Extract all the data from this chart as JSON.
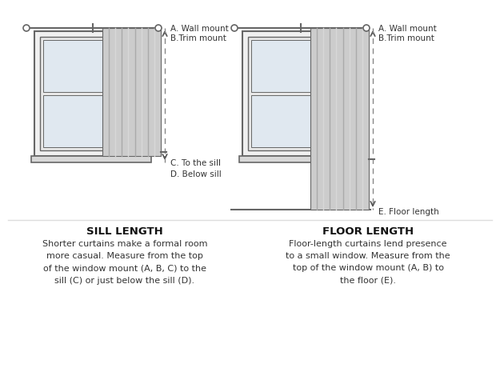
{
  "bg_color": "#ffffff",
  "line_color": "#666666",
  "curtain_fill": "#cccccc",
  "curtain_stripe": "#aaaaaa",
  "arrow_color": "#555555",
  "dashed_color": "#888888",
  "divider_color": "#dddddd",
  "left_title": "SILL LENGTH",
  "left_body": "Shorter curtains make a formal room\nmore casual. Measure from the top\nof the window mount (A, B, C) to the\nsill (C) or just below the sill (D).",
  "right_title": "FLOOR LENGTH",
  "right_body": "Floor-length curtains lend presence\nto a small window. Measure from the\ntop of the window mount (A, B) to\nthe floor (E).",
  "label_AB_left": "A. Wall mount\nB.Trim mount",
  "label_C": "C. To the sill",
  "label_D": "D. Below sill",
  "label_AB_right": "A. Wall mount\nB.Trim mount",
  "label_E": "E. Floor length"
}
